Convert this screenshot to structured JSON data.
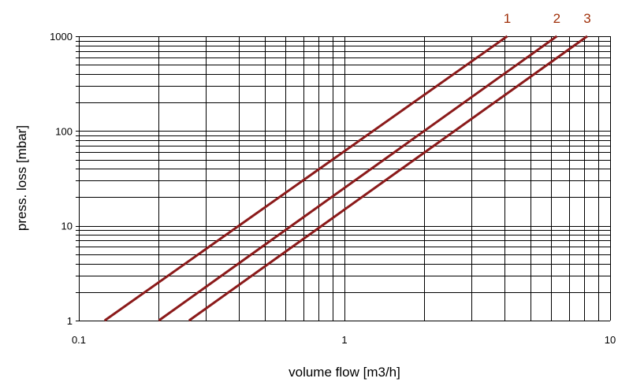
{
  "chart_data": {
    "type": "line",
    "title": "",
    "xlabel": "volume flow [m3/h]",
    "ylabel": "press. loss   [mbar]",
    "xscale": "log",
    "yscale": "log",
    "xlim": [
      0.1,
      10
    ],
    "ylim": [
      1,
      1000
    ],
    "grid": true,
    "xticks": [
      0.1,
      1,
      10
    ],
    "xtick_labels": [
      "0.1",
      "1",
      "10"
    ],
    "yticks": [
      1,
      10,
      100,
      1000
    ],
    "ytick_labels": [
      "1",
      "10",
      "100",
      "1000"
    ],
    "series_color": "#8b1a1a",
    "label_color": "#a0300a",
    "series": [
      {
        "name": "1",
        "x": [
          0.125,
          4.1
        ],
        "y": [
          1,
          1000
        ]
      },
      {
        "name": "2",
        "x": [
          0.2,
          6.3
        ],
        "y": [
          1,
          1000
        ]
      },
      {
        "name": "3",
        "x": [
          0.26,
          8.2
        ],
        "y": [
          1,
          1000
        ]
      }
    ]
  }
}
